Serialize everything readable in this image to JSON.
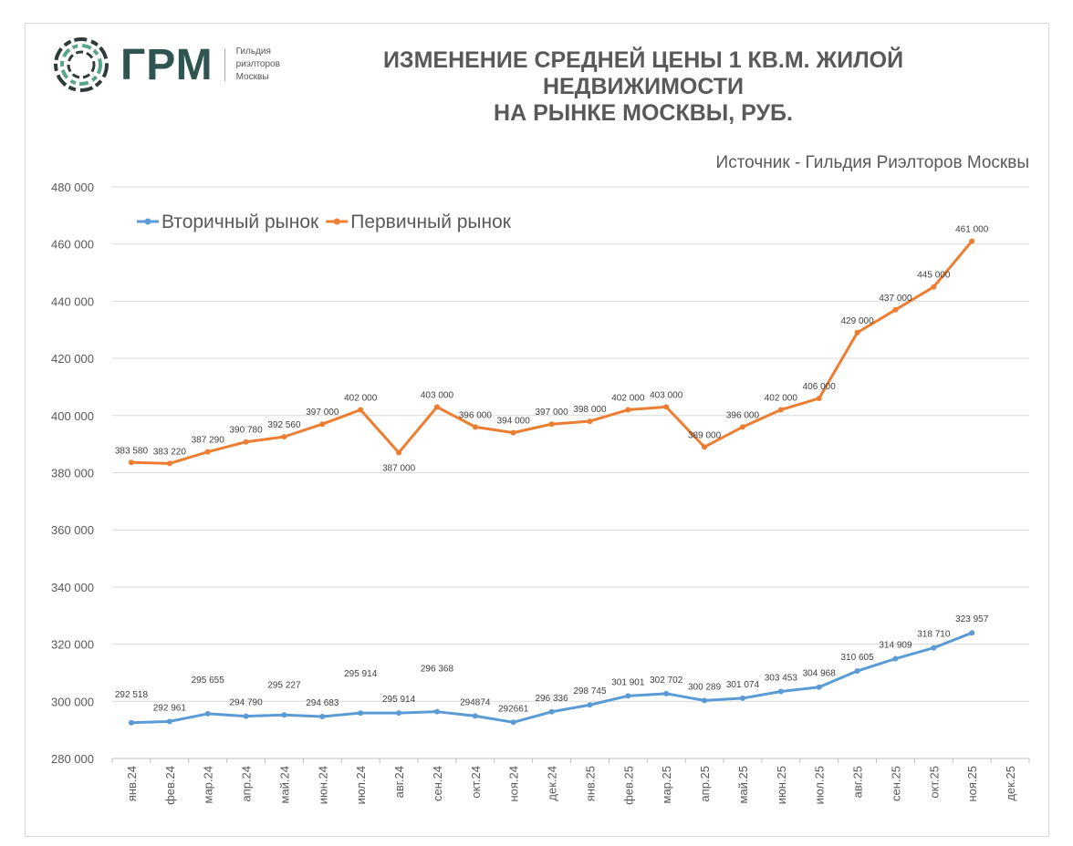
{
  "header": {
    "logo_text": "ГРМ",
    "logo_subtitle": [
      "Гильдия",
      "риэлторов",
      "Москвы"
    ],
    "title_line1": "ИЗМЕНЕНИЕ СРЕДНЕЙ ЦЕНЫ 1 КВ.М. ЖИЛОЙ НЕДВИЖИМОСТИ",
    "title_line2": "НА РЫНКЕ МОСКВЫ, РУБ.",
    "source": "Источник - Гильдия Риэлторов Москвы"
  },
  "chart_data": {
    "type": "line",
    "title": "ИЗМЕНЕНИЕ СРЕДНЕЙ ЦЕНЫ 1 КВ.М. ЖИЛОЙ НЕДВИЖИМОСТИ НА РЫНКЕ МОСКВЫ, РУБ.",
    "ylim": [
      280000,
      480000
    ],
    "yticks": [
      280000,
      300000,
      320000,
      340000,
      360000,
      380000,
      400000,
      420000,
      440000,
      460000,
      480000
    ],
    "ytick_labels": [
      "280 000",
      "300 000",
      "320 000",
      "340 000",
      "360 000",
      "380 000",
      "400 000",
      "420 000",
      "440 000",
      "460 000",
      "480 000"
    ],
    "grid": true,
    "legend_position": "top-left",
    "categories": [
      "янв.24",
      "фев.24",
      "мар.24",
      "апр.24",
      "май.24",
      "июн.24",
      "июл.24",
      "авг.24",
      "сен.24",
      "окт.24",
      "ноя.24",
      "дек.24",
      "янв.25",
      "фев.25",
      "мар.25",
      "апр.25",
      "май.25",
      "июн.25",
      "июл.25",
      "авг.25",
      "сен.25",
      "окт.25",
      "ноя.25",
      "дек.25"
    ],
    "series": [
      {
        "name": "Вторичный рынок",
        "color": "#5b9bd5",
        "values": [
          292518,
          292961,
          295655,
          294790,
          295227,
          294683,
          295914,
          295914,
          296368,
          294874,
          292661,
          296336,
          298745,
          301901,
          302702,
          300289,
          301074,
          303453,
          304968,
          310605,
          314909,
          318710,
          323957,
          null
        ],
        "labels": [
          "292 518",
          "292 961",
          "295 655",
          "294 790",
          "295 227",
          "294 683",
          "295 914",
          "295 914",
          "296 368",
          "294874",
          "292661",
          "296 336",
          "298 745",
          "301 901",
          "302 702",
          "300 289",
          "301 074",
          "303 453",
          "304 968",
          "310 605",
          "314 909",
          "318 710",
          "323 957",
          ""
        ]
      },
      {
        "name": "Первичный рынок",
        "color": "#ed7d31",
        "values": [
          383580,
          383220,
          387290,
          390780,
          392560,
          397000,
          402000,
          387000,
          403000,
          396000,
          394000,
          397000,
          398000,
          402000,
          403000,
          389000,
          396000,
          402000,
          406000,
          429000,
          437000,
          445000,
          461000,
          null
        ],
        "labels": [
          "383 580",
          "383 220",
          "387 290",
          "390 780",
          "392 560",
          "397 000",
          "402 000",
          "387 000",
          "403 000",
          "396 000",
          "394 000",
          "397 000",
          "398 000",
          "402 000",
          "403 000",
          "389 000",
          "396 000",
          "402 000",
          "406 000",
          "429 000",
          "437 000",
          "445 000",
          "461 000",
          ""
        ]
      }
    ]
  }
}
